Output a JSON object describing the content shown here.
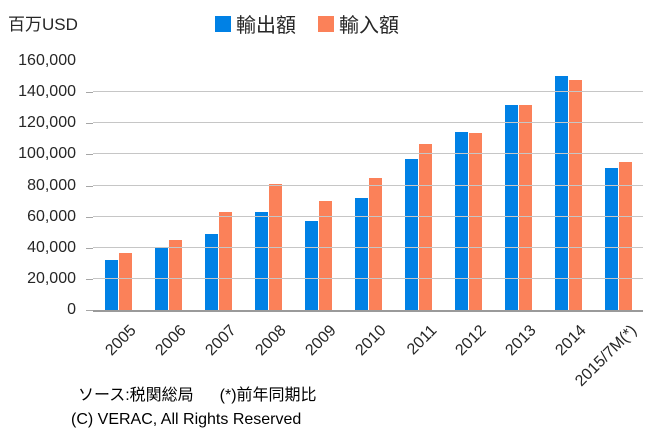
{
  "unit_label": "百万USD",
  "footer": {
    "source": "ソース:税関総局",
    "note": "(*)前年同期比",
    "copyright": "(C) VERAC, All Rights Reserved"
  },
  "colors": {
    "exports": "#0081e5",
    "imports": "#fb8159",
    "gridline": "#c6c6c6",
    "axis_line": "#9a9a9a",
    "text": "#262626"
  },
  "chart_data": {
    "type": "bar",
    "title": "",
    "unit_label": "百万USD",
    "xlabel": "",
    "ylabel": "百万USD",
    "categories": [
      "2005",
      "2006",
      "2007",
      "2008",
      "2009",
      "2010",
      "2011",
      "2012",
      "2013",
      "2014",
      "2015/7M(*)"
    ],
    "series": [
      {
        "name": "輸出額",
        "color": "#0081e5",
        "values": [
          32400,
          39800,
          48600,
          62700,
          57100,
          72200,
          96900,
          114500,
          132000,
          150200,
          91500
        ]
      },
      {
        "name": "輸入額",
        "color": "#fb8159",
        "values": [
          36800,
          44900,
          62800,
          80700,
          69900,
          84800,
          106700,
          113800,
          132000,
          147800,
          95000
        ]
      }
    ],
    "ylim": [
      0,
      160000
    ],
    "y_tick_step": 20000,
    "y_tick_labels": [
      "0",
      "20,000",
      "40,000",
      "60,000",
      "80,000",
      "100,000",
      "120,000",
      "140,000",
      "160,000"
    ],
    "grid": "horizontal major gridlines, no top (160,000) line",
    "legend_position": "top-center",
    "x_tick_rotation": -45
  }
}
